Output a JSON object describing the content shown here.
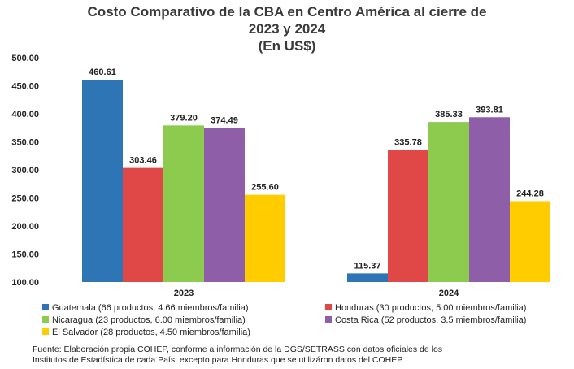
{
  "chart_data": {
    "type": "bar",
    "title_lines": [
      "Costo Comparativo de la CBA en Centro América al cierre de",
      "2023 y 2024",
      "(En US$)"
    ],
    "categories": [
      "2023",
      "2024"
    ],
    "ylim": [
      100,
      500
    ],
    "yticks": [
      "500.00",
      "450.00",
      "400.00",
      "350.00",
      "300.00",
      "250.00",
      "200.00",
      "150.00",
      "100.00"
    ],
    "yticks_values": [
      500,
      450,
      400,
      350,
      300,
      250,
      200,
      150,
      100
    ],
    "series": [
      {
        "name": "Guatemala (66 productos, 4.66 miembros/familia)",
        "color": "#2E75B6",
        "values": [
          460.61,
          115.37
        ],
        "labels": [
          "460.61",
          "115.37"
        ]
      },
      {
        "name": "Honduras (30 productos, 5.00 miembros/familia)",
        "color": "#E04848",
        "values": [
          303.46,
          335.78
        ],
        "labels": [
          "303.46",
          "335.78"
        ]
      },
      {
        "name": "Nicaragua (23 productos, 6.00 miembros/familia)",
        "color": "#8DCB4E",
        "values": [
          379.2,
          385.33
        ],
        "labels": [
          "379.20",
          "385.33"
        ]
      },
      {
        "name": "Costa Rica (52 productos, 3.5 miembros/familia)",
        "color": "#8E5FA8",
        "values": [
          374.49,
          393.81
        ],
        "labels": [
          "374.49",
          "393.81"
        ]
      },
      {
        "name": "El Salvador (28 productos, 4.50 miembros/familia)",
        "color": "#FFCC00",
        "values": [
          255.6,
          244.28
        ],
        "labels": [
          "255.60",
          "244.28"
        ]
      }
    ],
    "legend_position": "bottom",
    "grid": false
  },
  "source": {
    "line1": "Fuente: Elaboración propia COHEP, conforme a información de la DGS/SETRASS con datos oficiales de los",
    "line2": "Institutos de Estadística de cada País, excepto para Honduras que se utilizáron datos del COHEP."
  }
}
